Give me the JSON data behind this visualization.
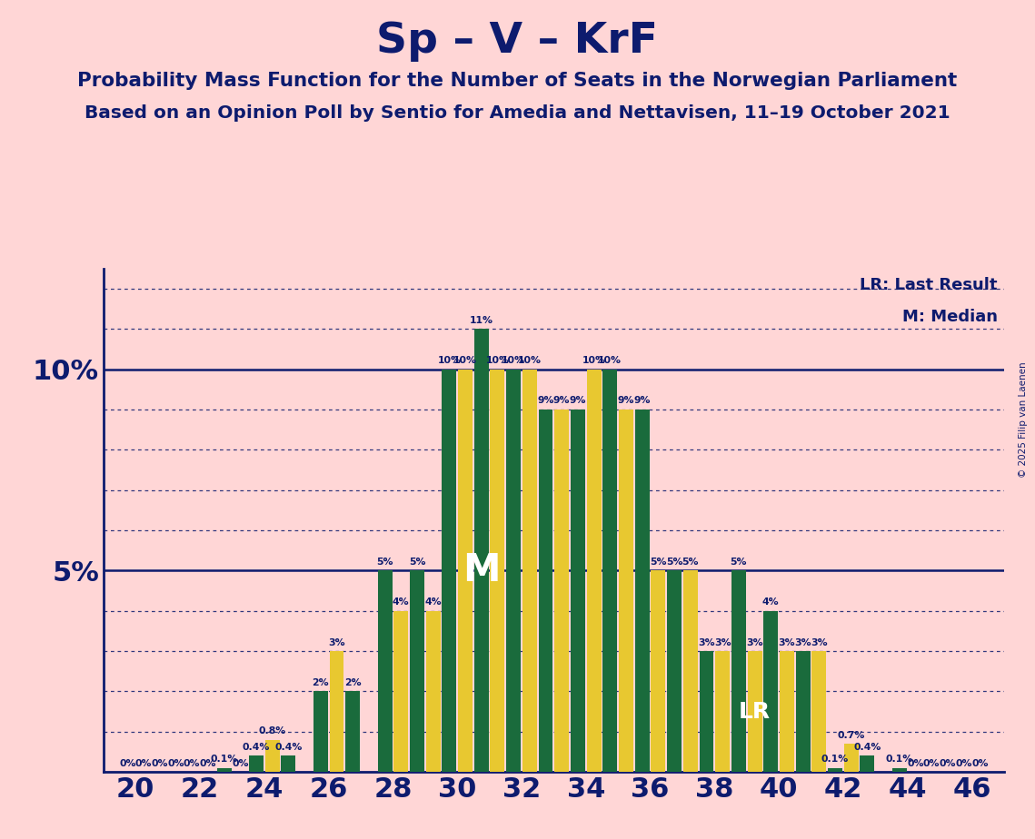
{
  "title": "Sp – V – KrF",
  "subtitle1": "Probability Mass Function for the Number of Seats in the Norwegian Parliament",
  "subtitle2": "Based on an Opinion Poll by Sentio for Amedia and Nettavisen, 11–19 October 2021",
  "background_color": "#FFD6D6",
  "bar_color_green": "#1A6B3C",
  "bar_color_yellow": "#E8C830",
  "title_color": "#0D1B6E",
  "axis_color": "#0D1B6E",
  "grid_color": "#0D1B6E",
  "copyright": "© 2025 Filip van Laenen",
  "seats": [
    20,
    21,
    22,
    23,
    24,
    25,
    26,
    27,
    28,
    29,
    30,
    31,
    32,
    33,
    34,
    35,
    36,
    37,
    38,
    39,
    40,
    41,
    42,
    43,
    44,
    45,
    46
  ],
  "green_values": [
    0.0,
    0.0,
    0.0,
    0.1,
    0.4,
    0.4,
    2.0,
    2.0,
    5.0,
    5.0,
    10.0,
    11.0,
    10.0,
    9.0,
    9.0,
    10.0,
    9.0,
    5.0,
    3.0,
    5.0,
    4.0,
    3.0,
    0.1,
    0.4,
    0.1,
    0.0,
    0.0
  ],
  "yellow_values": [
    0.0,
    0.0,
    0.0,
    0.0,
    0.8,
    0.0,
    3.0,
    0.0,
    4.0,
    4.0,
    10.0,
    10.0,
    10.0,
    9.0,
    10.0,
    9.0,
    5.0,
    5.0,
    3.0,
    3.0,
    3.0,
    3.0,
    0.7,
    0.0,
    0.0,
    0.0,
    0.0
  ],
  "median_seat": 31,
  "lr_seat": 39,
  "ylim": [
    0,
    12.5
  ],
  "hlines_solid": [
    5.0,
    10.0
  ],
  "hlines_dotted": [
    1.0,
    2.0,
    3.0,
    4.0,
    6.0,
    7.0,
    8.0,
    9.0,
    11.0,
    12.0
  ],
  "show_0pct_seats": [
    20,
    21,
    22,
    46
  ],
  "xticks": [
    20,
    22,
    24,
    26,
    28,
    30,
    32,
    34,
    36,
    38,
    40,
    42,
    44,
    46
  ]
}
